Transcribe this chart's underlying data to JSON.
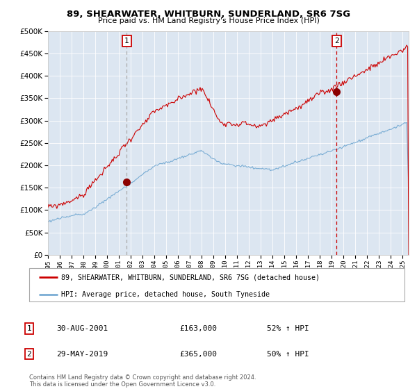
{
  "title": "89, SHEARWATER, WHITBURN, SUNDERLAND, SR6 7SG",
  "subtitle": "Price paid vs. HM Land Registry's House Price Index (HPI)",
  "plot_bg_color": "#dce6f1",
  "line1_color": "#cc0000",
  "line2_color": "#7aadd4",
  "marker_color": "#8b0000",
  "vline1_color": "#aaaaaa",
  "vline2_color": "#cc0000",
  "grid_color": "#ffffff",
  "ylim": [
    0,
    500000
  ],
  "yticks": [
    0,
    50000,
    100000,
    150000,
    200000,
    250000,
    300000,
    350000,
    400000,
    450000,
    500000
  ],
  "xlim_start": 1995.0,
  "xlim_end": 2025.5,
  "sale1_date_x": 2001.66,
  "sale1_price": 163000,
  "sale2_date_x": 2019.41,
  "sale2_price": 365000,
  "legend_line1": "89, SHEARWATER, WHITBURN, SUNDERLAND, SR6 7SG (detached house)",
  "legend_line2": "HPI: Average price, detached house, South Tyneside",
  "table_date1": "30-AUG-2001",
  "table_price1": "£163,000",
  "table_hpi1": "52% ↑ HPI",
  "table_date2": "29-MAY-2019",
  "table_price2": "£365,000",
  "table_hpi2": "50% ↑ HPI",
  "footer": "Contains HM Land Registry data © Crown copyright and database right 2024.\nThis data is licensed under the Open Government Licence v3.0."
}
